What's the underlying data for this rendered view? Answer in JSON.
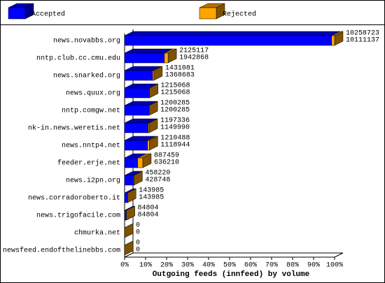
{
  "chart_data": {
    "type": "bar3d",
    "xlabel": "Outgoing feeds (innfeed) by volume",
    "categories": [
      "news.novabbs.org",
      "nntp.club.cc.cmu.edu",
      "news.snarked.org",
      "news.quux.org",
      "nntp.comgw.net",
      "nk-in.news.weretis.net",
      "news.nntp4.net",
      "feeder.erje.net",
      "news.i2pn.org",
      "news.corradoroberto.it",
      "news.trigofacile.com",
      "chmurka.net",
      "newsfeed.endofthelinebbs.com"
    ],
    "series": [
      {
        "name": "Accepted",
        "color": "#0000ff",
        "values": [
          10111137,
          1942868,
          1368683,
          1215068,
          1200285,
          1149990,
          1118944,
          636210,
          428748,
          143985,
          84804,
          0,
          0
        ]
      },
      {
        "name": "Rejected",
        "color": "#ffa500",
        "values": [
          147586,
          182249,
          62398,
          0,
          0,
          47346,
          91544,
          251249,
          29472,
          0,
          0,
          0,
          0
        ]
      }
    ],
    "totals": [
      10258723,
      2125117,
      1431081,
      1215068,
      1200285,
      1197336,
      1210488,
      887459,
      458220,
      143985,
      84804,
      0,
      0
    ],
    "xlim": [
      0,
      10258723
    ],
    "xticks": [
      {
        "value": 0,
        "label": "0%"
      },
      {
        "value": 1025872.3,
        "label": "10%"
      },
      {
        "value": 2051744.6,
        "label": "20%"
      },
      {
        "value": 3077616.9,
        "label": "30%"
      },
      {
        "value": 4103489.2,
        "label": "40%"
      },
      {
        "value": 5129361.5,
        "label": "50%"
      },
      {
        "value": 6155233.8,
        "label": "60%"
      },
      {
        "value": 7181106.1,
        "label": "70%"
      },
      {
        "value": 8206978.4,
        "label": "80%"
      },
      {
        "value": 9232850.7,
        "label": "90%"
      },
      {
        "value": 10258723,
        "label": "100%"
      }
    ]
  }
}
